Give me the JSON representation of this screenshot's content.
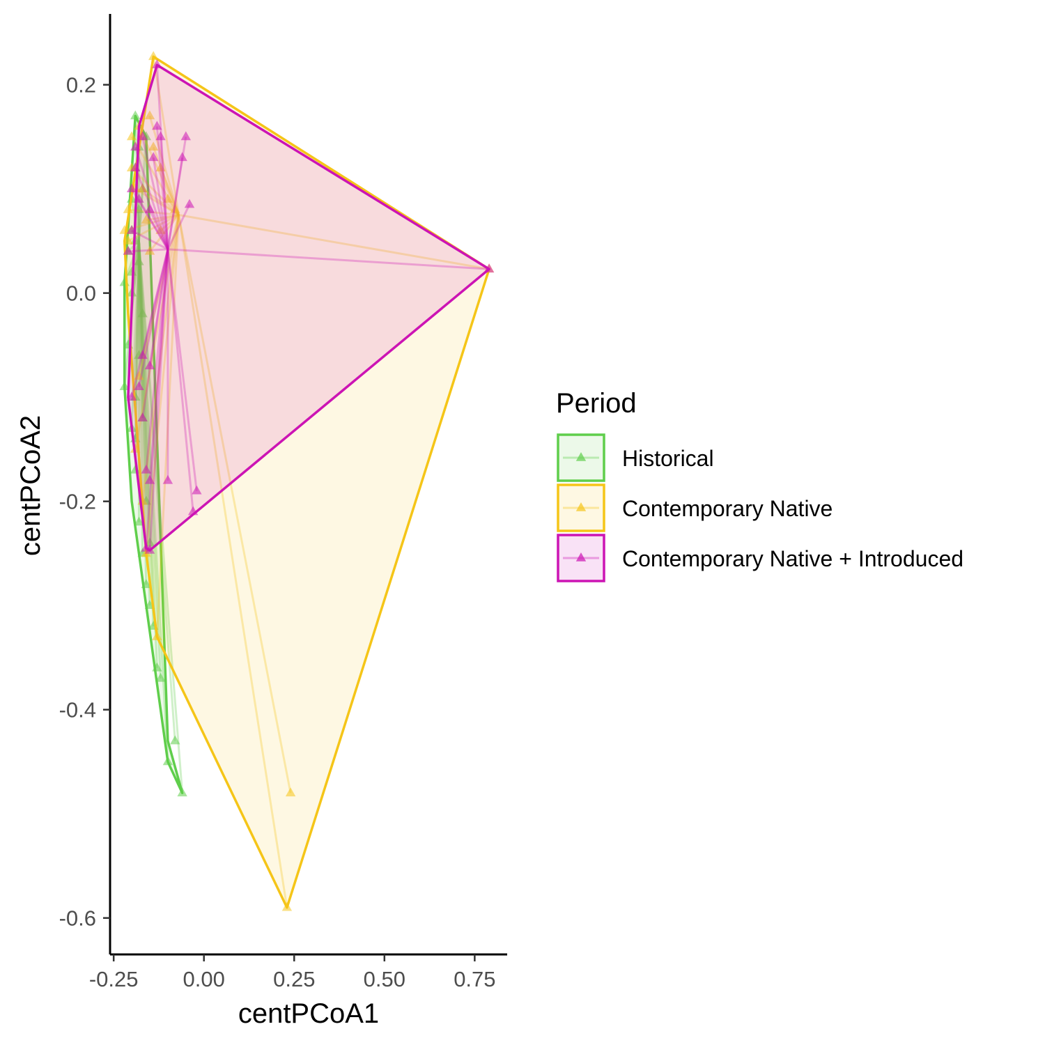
{
  "chart_data": {
    "type": "scatter",
    "xlabel": "centPCoA1",
    "ylabel": "centPCoA2",
    "xlim": [
      -0.26,
      0.84
    ],
    "ylim": [
      -0.635,
      0.268
    ],
    "x_ticks": [
      -0.25,
      0.0,
      0.25,
      0.5,
      0.75
    ],
    "x_tick_labels": [
      "-0.25",
      "0.00",
      "0.25",
      "0.50",
      "0.75"
    ],
    "y_ticks": [
      0.2,
      0.0,
      -0.2,
      -0.4,
      -0.6
    ],
    "y_tick_labels": [
      "0.2",
      "0.0",
      "-0.2",
      "-0.4",
      "-0.6"
    ],
    "grid": false,
    "legend": {
      "title": "Period",
      "position": "right"
    },
    "marker": "triangle",
    "series": [
      {
        "name": "Historical",
        "color": "#5fce4b",
        "fill": "#e9f7e6",
        "centroid": [
          -0.18,
          0.05
        ],
        "hull": [
          [
            -0.22,
            0.01
          ],
          [
            -0.19,
            0.17
          ],
          [
            -0.16,
            0.15
          ],
          [
            -0.1,
            -0.43
          ],
          [
            -0.06,
            -0.48
          ],
          [
            -0.1,
            -0.45
          ],
          [
            -0.2,
            -0.2
          ],
          [
            -0.22,
            -0.09
          ]
        ],
        "points": [
          [
            -0.22,
            0.01
          ],
          [
            -0.21,
            0.04
          ],
          [
            -0.2,
            0.06
          ],
          [
            -0.2,
            0.09
          ],
          [
            -0.19,
            0.12
          ],
          [
            -0.19,
            0.17
          ],
          [
            -0.18,
            0.14
          ],
          [
            -0.16,
            0.15
          ],
          [
            -0.17,
            0.1
          ],
          [
            -0.18,
            0.08
          ],
          [
            -0.19,
            0.05
          ],
          [
            -0.2,
            0.02
          ],
          [
            -0.21,
            -0.05
          ],
          [
            -0.22,
            -0.09
          ],
          [
            -0.2,
            -0.13
          ],
          [
            -0.19,
            -0.17
          ],
          [
            -0.18,
            -0.22
          ],
          [
            -0.17,
            -0.25
          ],
          [
            -0.16,
            -0.28
          ],
          [
            -0.15,
            -0.3
          ],
          [
            -0.14,
            -0.32
          ],
          [
            -0.13,
            -0.36
          ],
          [
            -0.12,
            -0.37
          ],
          [
            -0.08,
            -0.43
          ],
          [
            -0.1,
            -0.45
          ],
          [
            -0.06,
            -0.48
          ],
          [
            -0.19,
            -0.1
          ],
          [
            -0.18,
            -0.06
          ],
          [
            -0.17,
            -0.12
          ],
          [
            -0.16,
            -0.2
          ],
          [
            -0.2,
            0.0
          ],
          [
            -0.18,
            0.03
          ],
          [
            -0.17,
            -0.02
          ],
          [
            -0.19,
            -0.14
          ],
          [
            -0.15,
            -0.24
          ]
        ]
      },
      {
        "name": "Contemporary Native",
        "color": "#f5c518",
        "fill": "#fdf6e1",
        "centroid": [
          -0.07,
          0.075
        ],
        "hull": [
          [
            -0.22,
            0.05
          ],
          [
            -0.14,
            0.227
          ],
          [
            0.79,
            0.023
          ],
          [
            0.23,
            -0.59
          ],
          [
            -0.13,
            -0.33
          ],
          [
            -0.16,
            -0.25
          ],
          [
            -0.21,
            -0.02
          ]
        ],
        "points": [
          [
            -0.14,
            0.227
          ],
          [
            -0.15,
            0.17
          ],
          [
            -0.18,
            0.16
          ],
          [
            -0.2,
            0.15
          ],
          [
            -0.14,
            0.14
          ],
          [
            -0.12,
            0.12
          ],
          [
            -0.19,
            0.1
          ],
          [
            -0.21,
            0.08
          ],
          [
            -0.22,
            0.06
          ],
          [
            -0.21,
            0.05
          ],
          [
            -0.1,
            0.09
          ],
          [
            -0.08,
            0.08
          ],
          [
            -0.16,
            0.07
          ],
          [
            -0.12,
            0.06
          ],
          [
            0.79,
            0.023
          ],
          [
            0.24,
            -0.48
          ],
          [
            0.23,
            -0.59
          ],
          [
            -0.13,
            -0.33
          ],
          [
            -0.16,
            -0.25
          ],
          [
            -0.2,
            0.12
          ],
          [
            -0.17,
            0.1
          ],
          [
            -0.15,
            0.04
          ],
          [
            -0.18,
            -0.08
          ],
          [
            -0.19,
            -0.15
          ],
          [
            -0.17,
            -0.2
          ]
        ]
      },
      {
        "name": "Contemporary Native + Introduced",
        "color": "#cc14b4",
        "fill": "#f6e0e8",
        "centroid": [
          -0.1,
          0.042
        ],
        "hull": [
          [
            -0.21,
            -0.1
          ],
          [
            -0.18,
            0.16
          ],
          [
            -0.13,
            0.219
          ],
          [
            0.79,
            0.023
          ],
          [
            -0.15,
            -0.247
          ],
          [
            -0.16,
            -0.245
          ]
        ],
        "points": [
          [
            -0.13,
            0.219
          ],
          [
            -0.13,
            0.16
          ],
          [
            -0.12,
            0.15
          ],
          [
            -0.05,
            0.15
          ],
          [
            -0.06,
            0.13
          ],
          [
            -0.14,
            0.13
          ],
          [
            -0.19,
            0.12
          ],
          [
            -0.2,
            0.1
          ],
          [
            -0.18,
            0.09
          ],
          [
            -0.15,
            0.08
          ],
          [
            -0.04,
            0.085
          ],
          [
            -0.2,
            0.06
          ],
          [
            -0.21,
            0.04
          ],
          [
            0.79,
            0.023
          ],
          [
            -0.17,
            -0.06
          ],
          [
            -0.15,
            -0.07
          ],
          [
            -0.18,
            -0.09
          ],
          [
            -0.2,
            -0.1
          ],
          [
            -0.17,
            -0.12
          ],
          [
            -0.16,
            -0.17
          ],
          [
            -0.1,
            -0.18
          ],
          [
            -0.15,
            -0.18
          ],
          [
            -0.02,
            -0.19
          ],
          [
            -0.03,
            -0.21
          ],
          [
            -0.15,
            -0.247
          ],
          [
            -0.16,
            -0.245
          ],
          [
            -0.19,
            0.14
          ],
          [
            -0.17,
            0.15
          ]
        ]
      }
    ]
  }
}
